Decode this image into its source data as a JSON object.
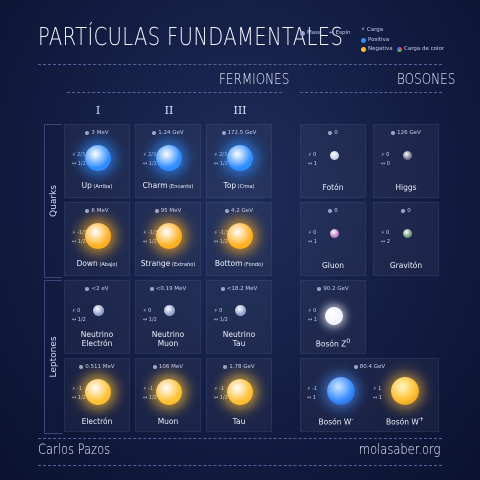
{
  "title": "PARTÍCULAS FUNDAMENTALES",
  "legend": {
    "mass": "Masa",
    "spin": "Espín",
    "charge": "Carga",
    "positive": "Positiva",
    "negative": "Negativa",
    "color_charge": "Carga de color"
  },
  "sections": {
    "fermions": "FERMIONES",
    "bosons": "BOSONES"
  },
  "generations": [
    "I",
    "II",
    "III"
  ],
  "groups": {
    "quarks": "Quarks",
    "leptons": "Leptones"
  },
  "fermions": [
    {
      "mass": "3 MeV",
      "charge": "2/3",
      "spin": "1/2",
      "name": "Up",
      "note": "(Arriba)",
      "color": "#2f8dff",
      "kind": "quark"
    },
    {
      "mass": "1.24 GeV",
      "charge": "2/3",
      "spin": "1/2",
      "name": "Charm",
      "note": "(Encanto)",
      "color": "#2f8dff",
      "kind": "quark"
    },
    {
      "mass": "172.5 GeV",
      "charge": "2/3",
      "spin": "1/2",
      "name": "Top",
      "note": "(Cima)",
      "color": "#2f8dff",
      "kind": "quark"
    },
    {
      "mass": "6 MeV",
      "charge": "-1/3",
      "spin": "1/2",
      "name": "Down",
      "note": "(Abajo)",
      "color": "#ffb020",
      "kind": "quark"
    },
    {
      "mass": "95 MeV",
      "charge": "-1/3",
      "spin": "1/2",
      "name": "Strange",
      "note": "(Extraño)",
      "color": "#ffb020",
      "kind": "quark"
    },
    {
      "mass": "4.2 GeV",
      "charge": "-1/3",
      "spin": "1/2",
      "name": "Bottom",
      "note": "(Fondo)",
      "color": "#ffb020",
      "kind": "quark"
    },
    {
      "mass": "<2 eV",
      "charge": "0",
      "spin": "1/2",
      "name": "Neutrino",
      "name2": "Electrón",
      "color": "#8fa0c8",
      "kind": "neutrino"
    },
    {
      "mass": "<0.19 MeV",
      "charge": "0",
      "spin": "1/2",
      "name": "Neutrino",
      "name2": "Muon",
      "color": "#8fa0c8",
      "kind": "neutrino"
    },
    {
      "mass": "<18.2 MeV",
      "charge": "0",
      "spin": "1/2",
      "name": "Neutrino",
      "name2": "Tau",
      "color": "#8fa0c8",
      "kind": "neutrino"
    },
    {
      "mass": "0.511 MeV",
      "charge": "-1",
      "spin": "1/2",
      "name": "Electrón",
      "color": "#ffc030",
      "kind": "lepton"
    },
    {
      "mass": "106 MeV",
      "charge": "-1",
      "spin": "1/2",
      "name": "Muon",
      "color": "#ffc030",
      "kind": "lepton"
    },
    {
      "mass": "1.78 GeV",
      "charge": "-1",
      "spin": "1/2",
      "name": "Tau",
      "color": "#ffc030",
      "kind": "lepton"
    }
  ],
  "bosons": [
    {
      "mass": "0",
      "charge": "0",
      "spin": "1",
      "name": "Fotón",
      "color": "#c8d0e8"
    },
    {
      "mass": "126 GeV",
      "charge": "0",
      "spin": "0",
      "name": "Higgs",
      "color": "#6f7a90"
    },
    {
      "mass": "0",
      "charge": "0",
      "spin": "1",
      "name": "Gluon",
      "color": "#c07acc"
    },
    {
      "mass": "0",
      "charge": "0",
      "spin": "2",
      "name": "Gravitón",
      "color": "#6a9a70"
    },
    {
      "mass": "90.2 GeV",
      "charge": "0",
      "spin": "1",
      "name": "Bosón Z",
      "sup": "0",
      "color": "#f0f2ff"
    }
  ],
  "w_boson": {
    "mass": "80.4 GeV",
    "left": {
      "charge": "-1",
      "spin": "1",
      "name": "Bosón W",
      "sup": "-"
    },
    "right": {
      "charge": "1",
      "spin": "1",
      "name": "Bosón W",
      "sup": "+"
    }
  },
  "footer": {
    "author": "Carlos Pazos",
    "site": "molasaber.org"
  }
}
